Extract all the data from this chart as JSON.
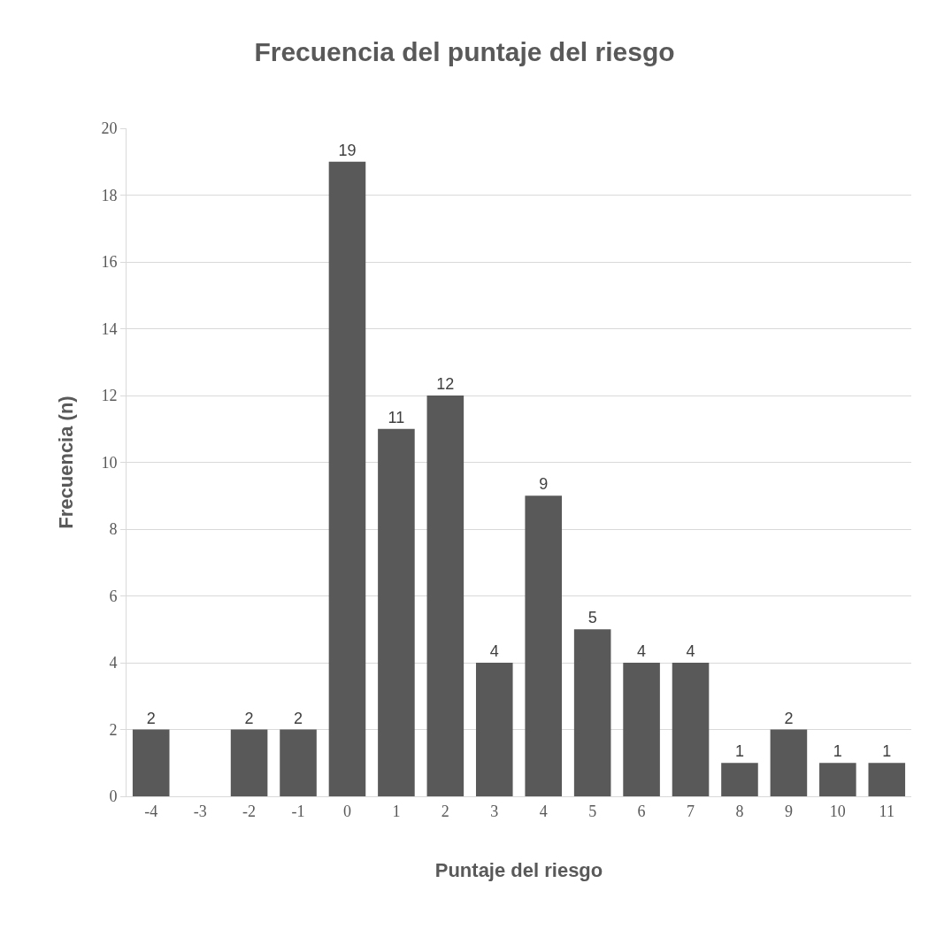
{
  "chart_data": {
    "type": "bar",
    "title": "Frecuencia del puntaje del riesgo",
    "xlabel": "Puntaje del riesgo",
    "ylabel": "Frecuencia (n)",
    "categories": [
      "-4",
      "-3",
      "-2",
      "-1",
      "0",
      "1",
      "2",
      "3",
      "4",
      "5",
      "6",
      "7",
      "8",
      "9",
      "10",
      "11"
    ],
    "values": [
      2,
      0,
      2,
      2,
      19,
      11,
      12,
      4,
      9,
      5,
      4,
      4,
      1,
      2,
      1,
      1
    ],
    "value_labels": [
      "2",
      null,
      "2",
      "2",
      "19",
      "11",
      "12",
      "4",
      "9",
      "5",
      "4",
      "4",
      "1",
      "2",
      "1",
      "1"
    ],
    "color": "#595959",
    "ylim": [
      0,
      20
    ],
    "yticks": [
      0,
      2,
      4,
      6,
      8,
      10,
      12,
      14,
      16,
      18,
      20
    ],
    "grid": "y",
    "legend": false
  }
}
